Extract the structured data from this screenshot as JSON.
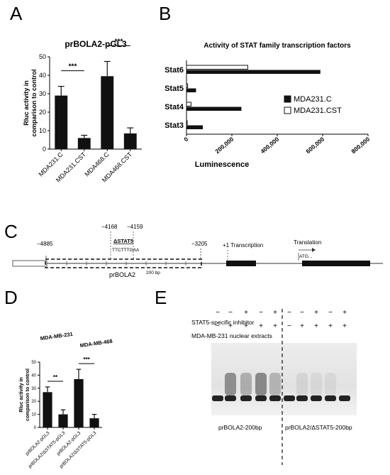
{
  "panels": {
    "a": "A",
    "b": "B",
    "c": "C",
    "d": "D",
    "e": "E"
  },
  "chart_data": [
    {
      "id": "A",
      "type": "bar",
      "title": "prBOLA2-pGL3",
      "ylabel": "Rluc activity in\ncomparison to control",
      "ylim": [
        0,
        50
      ],
      "yticks": [
        0,
        10,
        20,
        30,
        40,
        50
      ],
      "categories": [
        "MDA231.C",
        "MDA231.CST",
        "MDA468.C",
        "MDA468.CST"
      ],
      "values": [
        29,
        6,
        39.5,
        8.5
      ],
      "errors": [
        5,
        1.5,
        8,
        3
      ],
      "significance": [
        {
          "from": 0,
          "to": 1,
          "label": "***"
        },
        {
          "from": 2,
          "to": 3,
          "label": "***"
        }
      ]
    },
    {
      "id": "B",
      "type": "bar",
      "orientation": "horizontal",
      "title": "Activity of STAT family transcription factors",
      "xlabel": "Luminescence",
      "xlim": [
        0,
        800000
      ],
      "xticks": [
        "0",
        "200,000",
        "400,000",
        "600,000",
        "800,000"
      ],
      "xtick_values": [
        0,
        200000,
        400000,
        600000,
        800000
      ],
      "categories": [
        "Stat6",
        "Stat5",
        "Stat4",
        "Stat3"
      ],
      "series": [
        {
          "name": "MDA231.C",
          "color": "#111111",
          "values": [
            590000,
            42000,
            242000,
            72000
          ]
        },
        {
          "name": "MDA231.CST",
          "color": "#ffffff",
          "values": [
            270000,
            5000,
            20000,
            3000
          ]
        }
      ],
      "legend_position": "right"
    },
    {
      "id": "D",
      "type": "bar",
      "ylabel": "Rluc activity in\ncomparison to control",
      "ylim": [
        0,
        50
      ],
      "yticks": [
        0,
        10,
        20,
        30,
        40,
        50
      ],
      "group_labels": [
        "MDA-MB-231",
        "MDA-MB-468"
      ],
      "categories": [
        "prBOLA2-pGL3",
        "prBOLA2/ΔSTAT5-pGL3",
        "prBOLA2-pGL3",
        "prBOLA2/ΔSTAT5-pGL3"
      ],
      "values": [
        27,
        10,
        37,
        7
      ],
      "errors": [
        4,
        3.5,
        7.5,
        3
      ],
      "significance": [
        {
          "from": 0,
          "to": 1,
          "label": "**"
        },
        {
          "from": 2,
          "to": 3,
          "label": "***"
        }
      ]
    }
  ],
  "panel_c": {
    "pos_4885": "−4885",
    "pos_4168": "−4168",
    "pos_4159": "−4159",
    "pos_3205": "−3205",
    "delta_label": "ΔSTAT5",
    "seq": "TTCTTTGAA",
    "promoter_label": "prBOLA2",
    "scale_label": "200 bp",
    "transcription_label": "+1 Transcription",
    "translation_label": "Translation",
    "atg_label": "ATG..."
  },
  "panel_e": {
    "inhibitor_label": "STAT5-specific inhibitor",
    "extracts_label": "MDA-MB-231 nuclear extracts",
    "inhibitor_signs": [
      "−",
      "−",
      "+",
      "−",
      "+",
      "−",
      "−",
      "+",
      "−",
      "+"
    ],
    "extract_signs": [
      "−",
      "+",
      "+",
      "+",
      "+",
      "−",
      "+",
      "+",
      "+",
      "+"
    ],
    "probe_left": "prBOLA2-200bp",
    "probe_right": "prBOLA2/ΔSTAT5-200bp"
  }
}
